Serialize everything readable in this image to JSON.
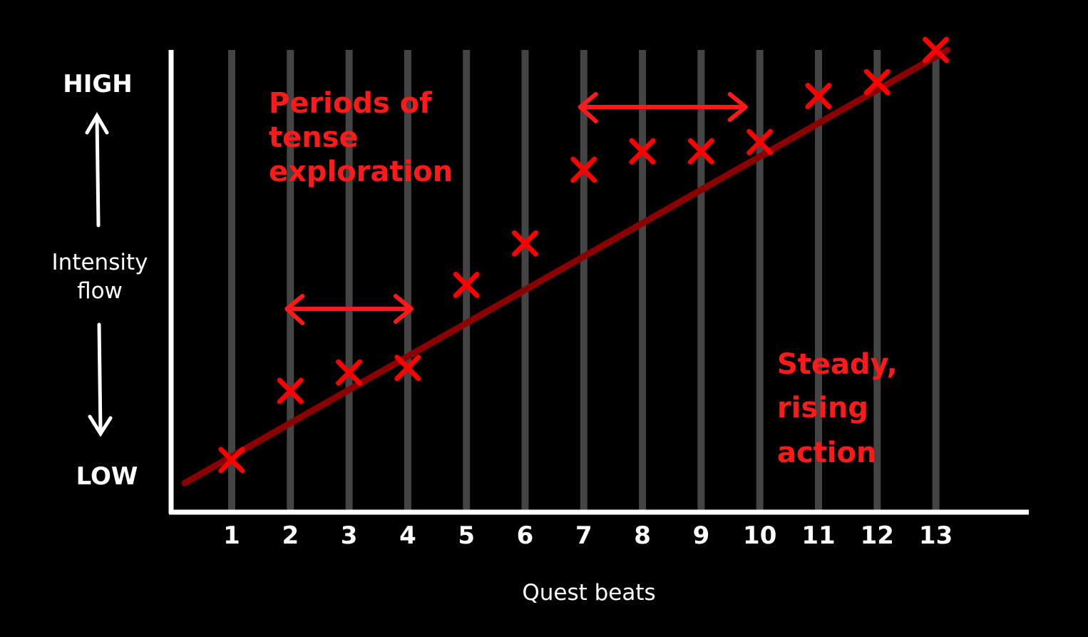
{
  "chart_data": {
    "type": "scatter",
    "title": "",
    "xlabel": "Quest beats",
    "ylabel": "Intensity flow",
    "y_high_label": "HIGH",
    "y_low_label": "LOW",
    "x_ticks": [
      "1",
      "2",
      "3",
      "4",
      "5",
      "6",
      "7",
      "8",
      "9",
      "10",
      "11",
      "12",
      "13"
    ],
    "xlim": [
      0,
      14.5
    ],
    "ylim": [
      0,
      1
    ],
    "y_scale": "relative intensity, LOW to HIGH (no numeric ticks)",
    "grid": "vertical lines at each beat",
    "points": {
      "x": [
        1,
        2,
        3,
        4,
        5,
        6,
        7,
        8,
        9,
        10,
        11,
        12,
        13
      ],
      "y": [
        0.11,
        0.26,
        0.3,
        0.31,
        0.49,
        0.58,
        0.74,
        0.78,
        0.78,
        0.8,
        0.9,
        0.93,
        1.0
      ]
    },
    "trend_line": {
      "x": [
        0.2,
        13.2
      ],
      "y": [
        0.06,
        1.0
      ]
    },
    "annotations": [
      {
        "lines": [
          "Periods of",
          "tense",
          "exploration"
        ]
      },
      {
        "lines": [
          "Steady,",
          "rising",
          "action"
        ]
      }
    ],
    "range_arrows": [
      {
        "from": 2,
        "to": 4
      },
      {
        "from": 7,
        "to": 10
      }
    ],
    "colors": {
      "background": "#000000",
      "axis": "#ffffff",
      "grid": "#444444",
      "markers": "#ff0000",
      "trend": "#8b0000",
      "annotation": "#ff1a1a"
    }
  }
}
